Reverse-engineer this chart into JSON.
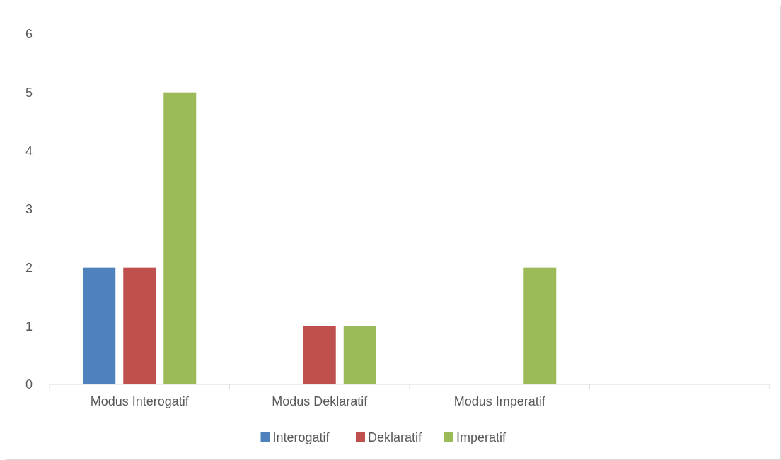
{
  "chart_data": {
    "type": "bar",
    "categories": [
      "Modus Interogatif",
      "Modus Deklaratif",
      "Modus Imperatif",
      null
    ],
    "series": [
      {
        "name": "Interogatif",
        "color": "#4f81bd",
        "values": [
          2,
          0,
          0,
          null
        ]
      },
      {
        "name": "Deklaratif",
        "color": "#c0504d",
        "values": [
          2,
          1,
          0,
          null
        ]
      },
      {
        "name": "Imperatif",
        "color": "#9bbb59",
        "values": [
          5,
          1,
          2,
          null
        ]
      }
    ],
    "ylim": [
      0,
      6
    ],
    "yticks": [
      0,
      1,
      2,
      3,
      4,
      5,
      6
    ],
    "grid": false,
    "legend": "bottom"
  }
}
